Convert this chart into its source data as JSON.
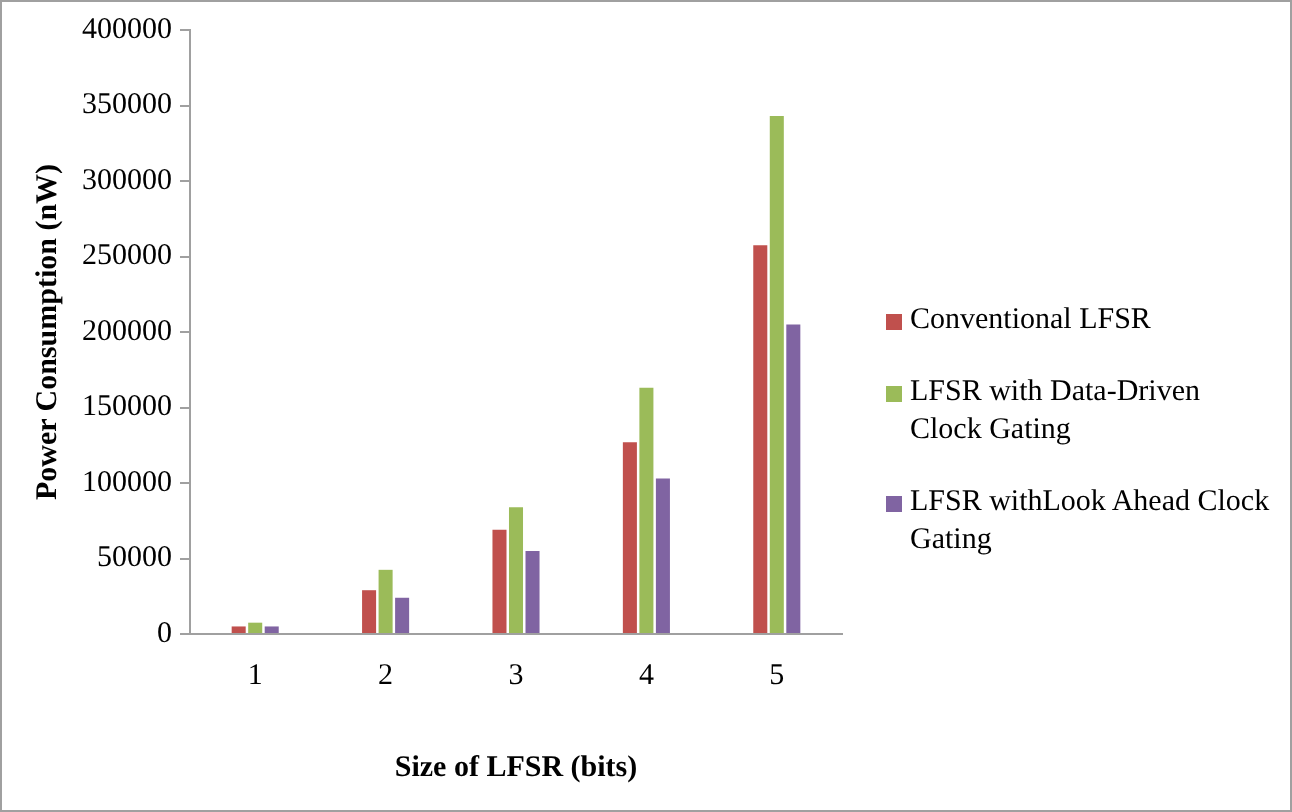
{
  "chart_data": {
    "type": "bar",
    "xlabel": "Size of LFSR (bits)",
    "ylabel": "Power Consumption (nW)",
    "categories": [
      "1",
      "2",
      "3",
      "4",
      "5"
    ],
    "series": [
      {
        "name": "Conventional LFSR",
        "color": "#c0504d",
        "values": [
          5000,
          29000,
          69000,
          127000,
          257500
        ]
      },
      {
        "name": "LFSR with Data-Driven Clock Gating",
        "color": "#9bbb59",
        "values": [
          7500,
          42500,
          84000,
          163000,
          343000
        ]
      },
      {
        "name": "LFSR withLook Ahead Clock Gating",
        "color": "#8064a2",
        "values": [
          5000,
          24000,
          55000,
          103000,
          205000
        ]
      }
    ],
    "ylim": [
      0,
      400000
    ],
    "yticks": [
      0,
      50000,
      100000,
      150000,
      200000,
      250000,
      300000,
      350000,
      400000
    ],
    "grid": false,
    "legend": "right"
  }
}
